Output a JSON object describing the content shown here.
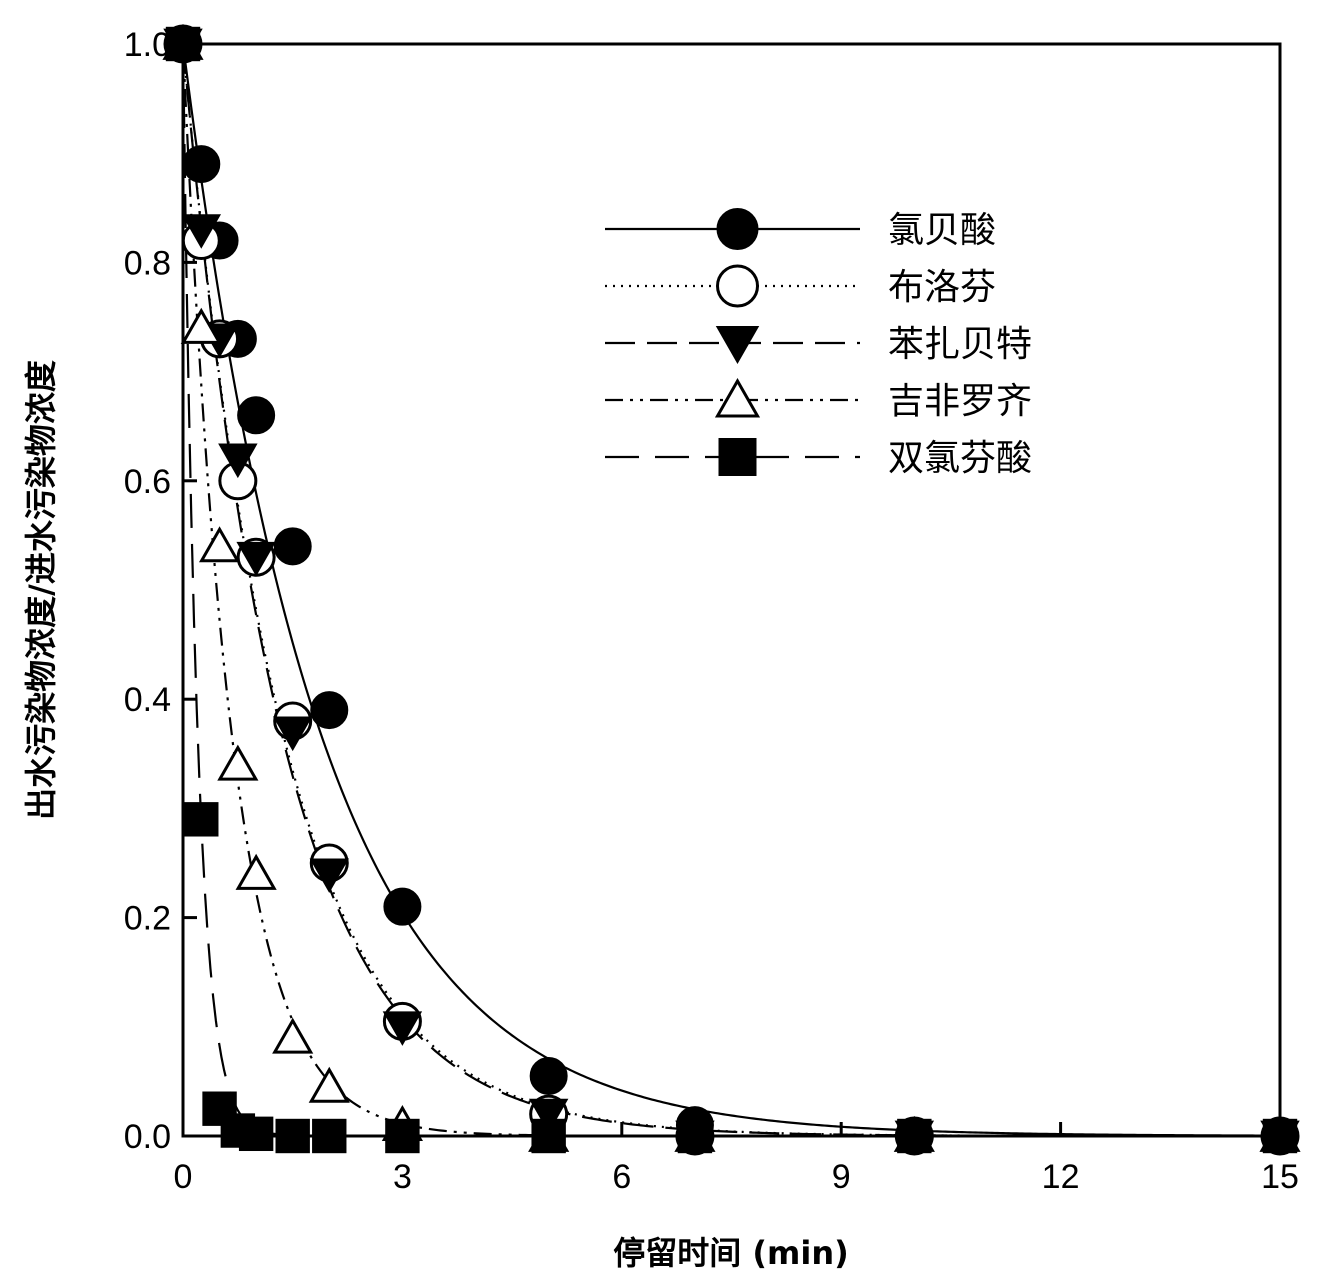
{
  "chart_data": {
    "type": "line",
    "title": "",
    "xlabel": "停留时间 (min)",
    "ylabel": "出水污染物浓度/进水污染物浓度",
    "xlim": [
      0,
      15
    ],
    "ylim": [
      0,
      1.0
    ],
    "xticks": [
      0,
      3,
      6,
      9,
      12,
      15
    ],
    "yticks": [
      0.0,
      0.2,
      0.4,
      0.6,
      0.8,
      1.0
    ],
    "xtick_labels": [
      "0",
      "3",
      "6",
      "9",
      "12",
      "15"
    ],
    "ytick_labels": [
      "0.0",
      "0.2",
      "0.4",
      "0.6",
      "0.8",
      "1.0"
    ],
    "grid": false,
    "legend_position": "top-right",
    "series": [
      {
        "name": "氯贝酸",
        "marker": "filled-circle",
        "line": "solid",
        "x": [
          0,
          0.25,
          0.5,
          0.75,
          1,
          1.5,
          2,
          3,
          5,
          7,
          10,
          15
        ],
        "y": [
          1.0,
          0.89,
          0.82,
          0.73,
          0.66,
          0.54,
          0.39,
          0.21,
          0.055,
          0.01,
          0.0,
          0.0
        ],
        "k": 0.53
      },
      {
        "name": "布洛芬",
        "marker": "open-circle",
        "line": "dotted",
        "x": [
          0,
          0.25,
          0.5,
          0.75,
          1,
          1.5,
          2,
          3,
          5,
          7,
          10,
          15
        ],
        "y": [
          1.0,
          0.82,
          0.73,
          0.6,
          0.53,
          0.38,
          0.25,
          0.105,
          0.02,
          0.0,
          0.0,
          0.0
        ],
        "k": 0.73
      },
      {
        "name": "苯扎贝特",
        "marker": "filled-triangle-down",
        "line": "dashed",
        "x": [
          0,
          0.25,
          0.5,
          0.75,
          1,
          1.5,
          2,
          3,
          5,
          7,
          10,
          15
        ],
        "y": [
          1.0,
          0.83,
          0.73,
          0.62,
          0.53,
          0.37,
          0.24,
          0.1,
          0.02,
          0.0,
          0.0,
          0.0
        ],
        "k": 0.74
      },
      {
        "name": "吉非罗齐",
        "marker": "open-triangle-up",
        "line": "dash-dot-dot",
        "x": [
          0,
          0.25,
          0.5,
          0.75,
          1,
          1.5,
          2,
          3,
          5,
          7,
          10,
          15
        ],
        "y": [
          1.0,
          0.74,
          0.54,
          0.34,
          0.24,
          0.09,
          0.045,
          0.01,
          0.0,
          0.0,
          0.0,
          0.0
        ],
        "k": 1.5
      },
      {
        "name": "双氯芬酸",
        "marker": "filled-square",
        "line": "long-dash",
        "x": [
          0,
          0.25,
          0.5,
          0.75,
          1,
          1.5,
          2,
          3,
          5,
          7,
          10,
          15
        ],
        "y": [
          1.0,
          0.29,
          0.025,
          0.005,
          0.002,
          0.0,
          0.0,
          0.0,
          0.0,
          0.0,
          0.0,
          0.0
        ],
        "k": 5.0
      }
    ]
  }
}
